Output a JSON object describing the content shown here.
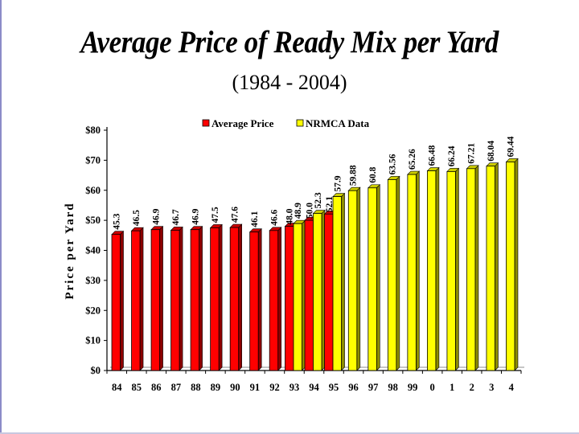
{
  "chart_data": {
    "type": "bar",
    "title": "Average Price of Ready Mix per Yard",
    "subtitle": "(1984 - 2004)",
    "xlabel": "",
    "ylabel": "Price per Yard",
    "ylim": [
      0,
      80
    ],
    "yticks": [
      "$0",
      "$10",
      "$20",
      "$30",
      "$40",
      "$50",
      "$60",
      "$70",
      "$80"
    ],
    "categories": [
      "84",
      "85",
      "86",
      "87",
      "88",
      "89",
      "90",
      "91",
      "92",
      "93",
      "94",
      "95",
      "96",
      "97",
      "98",
      "99",
      "0",
      "1",
      "2",
      "3",
      "4"
    ],
    "series": [
      {
        "name": "Average Price",
        "color": "#ff0000",
        "values": [
          45.3,
          46.5,
          46.9,
          46.7,
          46.9,
          47.5,
          47.6,
          46.1,
          46.6,
          48.0,
          50.0,
          52.1,
          null,
          null,
          null,
          null,
          null,
          null,
          null,
          null,
          null
        ],
        "labels": [
          "45.3",
          "46.5",
          "46.9",
          "46.7",
          "46.9",
          "47.5",
          "47.6",
          "46.1",
          "46.6",
          "48.0",
          "50.0",
          "52.1",
          "",
          "",
          "",
          "",
          "",
          "",
          "",
          "",
          ""
        ]
      },
      {
        "name": "NRMCA Data",
        "color": "#ffff00",
        "values": [
          null,
          null,
          null,
          null,
          null,
          null,
          null,
          null,
          null,
          48.9,
          52.3,
          57.9,
          59.88,
          60.8,
          63.56,
          65.26,
          66.48,
          66.24,
          67.21,
          68.04,
          69.44
        ],
        "labels": [
          "",
          "",
          "",
          "",
          "",
          "",
          "",
          "",
          "",
          "48.9",
          "52.3",
          "57.9",
          "59.88",
          "60.8",
          "63.56",
          "65.26",
          "66.48",
          "66.24",
          "67.21",
          "68.04",
          "69.44"
        ]
      }
    ],
    "legend": "top"
  }
}
